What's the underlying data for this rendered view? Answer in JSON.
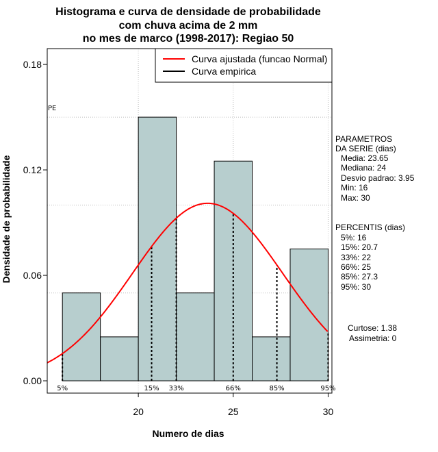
{
  "title_lines": [
    "Histograma e curva de densidade de probabilidade",
    "com chuva acima de 2 mm",
    "no mes de marco (1998-2017): Regiao 50"
  ],
  "colors": {
    "bar_fill": "#b7cece",
    "curve": "#ff0000",
    "empirical": "#000000",
    "grid": "#bebebe"
  },
  "chart_data": {
    "type": "bar",
    "title": "Histograma e curva de densidade de probabilidade com chuva acima de 2 mm no mes de marco (1998-2017): Regiao 50",
    "xlabel": "Numero de dias",
    "ylabel": "Densidade de probabilidade",
    "xlim": [
      15.2,
      30.2
    ],
    "ylim": [
      -0.007,
      0.189
    ],
    "x_ticks": [
      20,
      25,
      30
    ],
    "x_tick_labels": [
      "20",
      "25",
      "30"
    ],
    "y_ticks": [
      0.0,
      0.06,
      0.12,
      0.18
    ],
    "y_tick_labels": [
      "0.00",
      "0.06",
      "0.12",
      "0.18"
    ],
    "grid": true,
    "vgrid_x": [
      20,
      25,
      30
    ],
    "hgrid_y": [
      0.05,
      0.1,
      0.15
    ],
    "bins": [
      {
        "start": 16,
        "end": 18,
        "density": 0.05
      },
      {
        "start": 18,
        "end": 20,
        "density": 0.025
      },
      {
        "start": 20,
        "end": 22,
        "density": 0.15
      },
      {
        "start": 22,
        "end": 24,
        "density": 0.05
      },
      {
        "start": 24,
        "end": 26,
        "density": 0.125
      },
      {
        "start": 26,
        "end": 28,
        "density": 0.025
      },
      {
        "start": 28,
        "end": 30,
        "density": 0.075
      }
    ],
    "normal_curve": {
      "mean": 23.65,
      "sd": 3.95,
      "label": "Curva ajustada (funcao Normal)"
    },
    "empirical_label": "Curva empirica",
    "legend_position": "top-right",
    "pe_label": "PE",
    "pe_y": 0.15,
    "percentiles": [
      {
        "label": "5%",
        "x": 16
      },
      {
        "label": "15%",
        "x": 20.7
      },
      {
        "label": "33%",
        "x": 22
      },
      {
        "label": "66%",
        "x": 25
      },
      {
        "label": "85%",
        "x": 27.3
      },
      {
        "label": "95%",
        "x": 30
      }
    ]
  },
  "sidebar": {
    "params_title_1": "PARAMETROS",
    "params_title_2": "DA SERIE (dias)",
    "media": "Media: 23.65",
    "mediana": "Mediana: 24",
    "desvio": "Desvio padrao: 3.95",
    "min": "Min: 16",
    "max": "Max: 30",
    "pct_title": "PERCENTIS (dias)",
    "pct_lines": [
      "5%: 16",
      "15%: 20.7",
      "33%: 22",
      "66%: 25",
      "85%: 27.3",
      "95%: 30"
    ],
    "curtose": "Curtose: 1.38",
    "assimetria": "Assimetria: 0"
  }
}
